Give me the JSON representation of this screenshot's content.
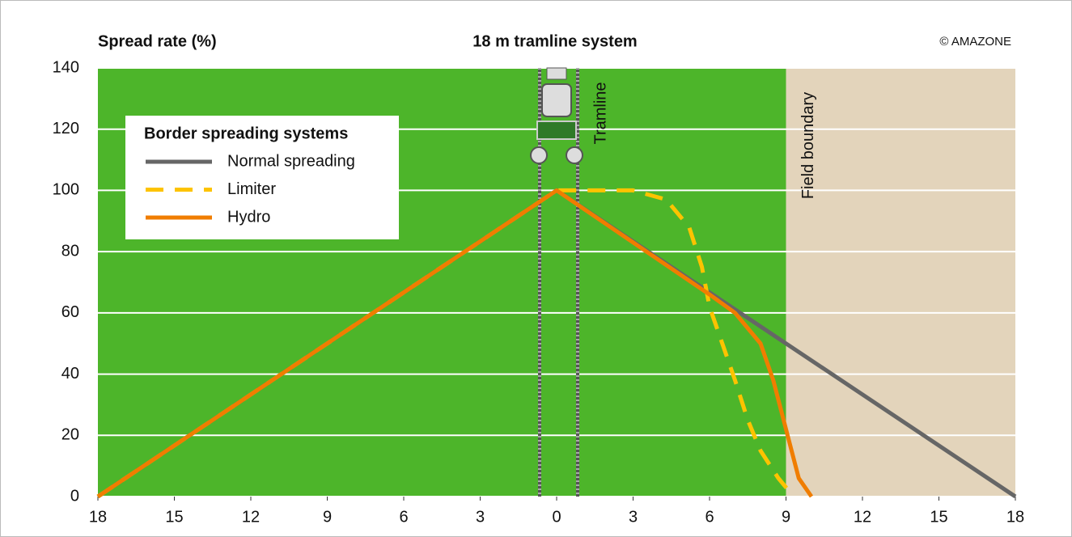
{
  "chart_data": {
    "type": "line",
    "title": "18 m tramline system",
    "y_label": "Spread rate (%)",
    "copyright": "© AMAZONE",
    "legend_title": "Border spreading systems",
    "annotations": {
      "tramline": "Tramline",
      "field_boundary": {
        "text": "Field boundary",
        "x": 9
      }
    },
    "field_color": "#4db52a",
    "boundary_color": "#e3d4bb",
    "grid": true,
    "xlim": [
      -18,
      18
    ],
    "ylim": [
      0,
      140
    ],
    "yticks": [
      0,
      20,
      40,
      60,
      80,
      100,
      120,
      140
    ],
    "xticks": [
      {
        "value": -18,
        "label": "18"
      },
      {
        "value": -15,
        "label": "15"
      },
      {
        "value": -12,
        "label": "12"
      },
      {
        "value": -9,
        "label": "9"
      },
      {
        "value": -6,
        "label": "6"
      },
      {
        "value": -3,
        "label": "3"
      },
      0,
      3,
      6,
      9,
      12,
      15,
      18
    ],
    "series": [
      {
        "name": "Normal spreading",
        "color": "#666666",
        "dashed": false,
        "x": [
          -18,
          0,
          18
        ],
        "values": [
          0,
          100,
          0
        ]
      },
      {
        "name": "Limiter",
        "color": "#fdc300",
        "dashed": true,
        "x": [
          -18,
          0,
          1,
          3,
          4.3,
          5.2,
          5.7,
          6,
          6.5,
          7,
          7.5,
          8,
          8.7,
          9.3
        ],
        "values": [
          0,
          100,
          100,
          100,
          97,
          88,
          75,
          62,
          50,
          38,
          25,
          15,
          6,
          0
        ]
      },
      {
        "name": "Hydro",
        "color": "#f07d00",
        "dashed": false,
        "x": [
          -18,
          0,
          6,
          7,
          8,
          8.5,
          9,
          9.5,
          10
        ],
        "values": [
          0,
          100,
          66,
          60,
          50,
          38,
          22,
          6,
          0
        ]
      }
    ]
  }
}
